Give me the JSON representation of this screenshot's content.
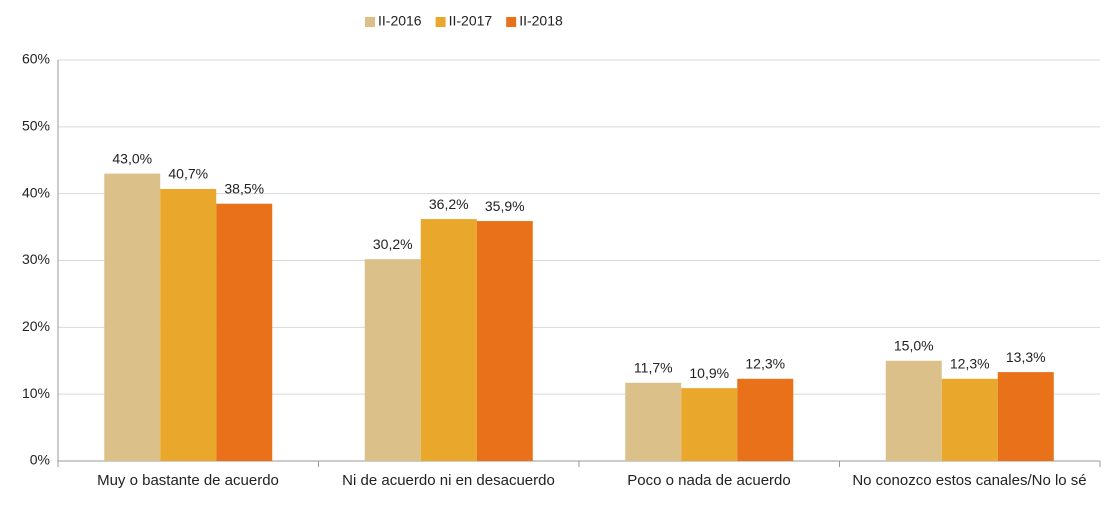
{
  "chart_data": {
    "type": "bar",
    "categories": [
      "Muy o bastante de acuerdo",
      "Ni de acuerdo ni en desacuerdo",
      "Poco o nada de acuerdo",
      "No conozco estos canales/No lo sé"
    ],
    "series": [
      {
        "name": "II-2016",
        "color": "#dcc08a",
        "values": [
          43.0,
          30.2,
          11.7,
          15.0
        ],
        "value_labels": [
          "43,0%",
          "30,2%",
          "11,7%",
          "15,0%"
        ]
      },
      {
        "name": "II-2017",
        "color": "#e9a82b",
        "values": [
          40.7,
          36.2,
          10.9,
          12.3
        ],
        "value_labels": [
          "40,7%",
          "36,2%",
          "10,9%",
          "12,3%"
        ]
      },
      {
        "name": "II-2018",
        "color": "#e8711a",
        "values": [
          38.5,
          35.9,
          12.3,
          13.3
        ],
        "value_labels": [
          "38,5%",
          "35,9%",
          "12,3%",
          "13,3%"
        ]
      }
    ],
    "ylim": [
      0,
      60
    ],
    "yticks": [
      {
        "value": 0,
        "label": "0%"
      },
      {
        "value": 10,
        "label": "10%"
      },
      {
        "value": 20,
        "label": "20%"
      },
      {
        "value": 30,
        "label": "30%"
      },
      {
        "value": 40,
        "label": "40%"
      },
      {
        "value": 50,
        "label": "50%"
      },
      {
        "value": 60,
        "label": "60%"
      }
    ],
    "grid": true,
    "legend": "top"
  }
}
